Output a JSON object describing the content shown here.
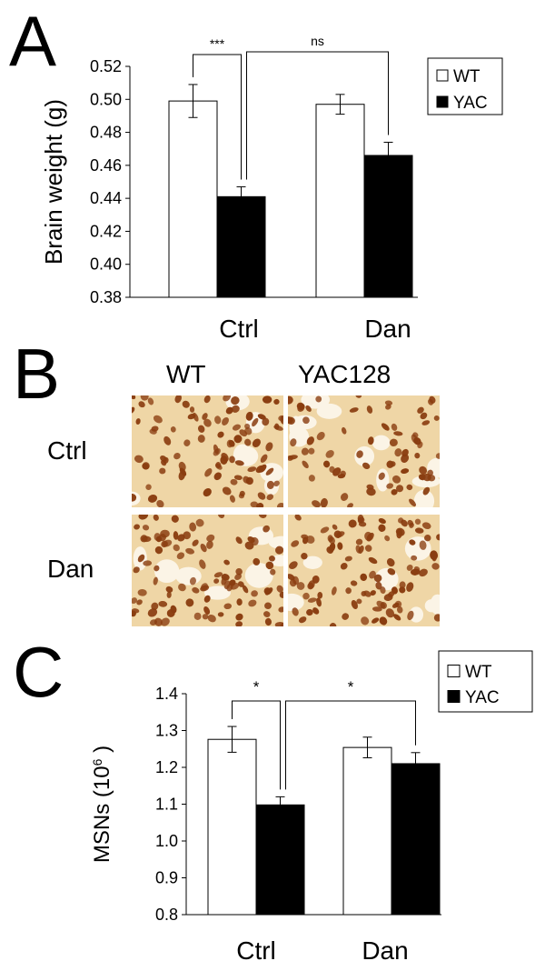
{
  "panel_letters": {
    "a": "A",
    "b": "B",
    "c": "C"
  },
  "chart_data": [
    {
      "type": "bar",
      "panel": "A",
      "ylabel": "Brain weight (g)",
      "categories": [
        "Ctrl",
        "Dan"
      ],
      "series": [
        {
          "name": "WT",
          "values": [
            0.499,
            0.497
          ],
          "errors": [
            0.01,
            0.006
          ],
          "color": "#ffffff"
        },
        {
          "name": "YAC",
          "values": [
            0.441,
            0.466
          ],
          "errors": [
            0.006,
            0.008
          ],
          "color": "#000000"
        }
      ],
      "ylim": [
        0.38,
        0.52
      ],
      "yticks": [
        "0.38",
        "0.40",
        "0.42",
        "0.44",
        "0.46",
        "0.48",
        "0.50",
        "0.52"
      ],
      "legend": {
        "position": "top-right",
        "entries": [
          "WT",
          "YAC"
        ]
      },
      "annotations": [
        {
          "text": "***",
          "from": "Ctrl-WT",
          "to": "Ctrl-YAC"
        },
        {
          "text": "ns",
          "from": "Ctrl-YAC",
          "to": "Dan-YAC"
        }
      ]
    },
    {
      "type": "bar",
      "panel": "C",
      "ylabel": "MSNs (10",
      "ylabel_sup": "6",
      "ylabel_end": " )",
      "categories": [
        "Ctrl",
        "Dan"
      ],
      "series": [
        {
          "name": "WT",
          "values": [
            1.276,
            1.254
          ],
          "errors": [
            0.035,
            0.028
          ],
          "color": "#ffffff"
        },
        {
          "name": "YAC",
          "values": [
            1.098,
            1.21
          ],
          "errors": [
            0.022,
            0.03
          ],
          "color": "#000000"
        }
      ],
      "ylim": [
        0.8,
        1.4
      ],
      "yticks": [
        "0.8",
        "0.9",
        "1.0",
        "1.1",
        "1.2",
        "1.3",
        "1.4"
      ],
      "legend": {
        "position": "top-right",
        "entries": [
          "WT",
          "YAC"
        ]
      },
      "annotations": [
        {
          "text": "*",
          "from": "Ctrl-WT",
          "to": "Ctrl-YAC"
        },
        {
          "text": "*",
          "from": "Ctrl-YAC",
          "to": "Dan-YAC"
        }
      ]
    }
  ],
  "micrographs": {
    "columns": [
      "WT",
      "YAC128"
    ],
    "rows": [
      "Ctrl",
      "Dan"
    ],
    "colors": {
      "background": "#efd6a6",
      "nucleus": "#8a3d10",
      "cell_body": "#fbf4e6"
    }
  }
}
